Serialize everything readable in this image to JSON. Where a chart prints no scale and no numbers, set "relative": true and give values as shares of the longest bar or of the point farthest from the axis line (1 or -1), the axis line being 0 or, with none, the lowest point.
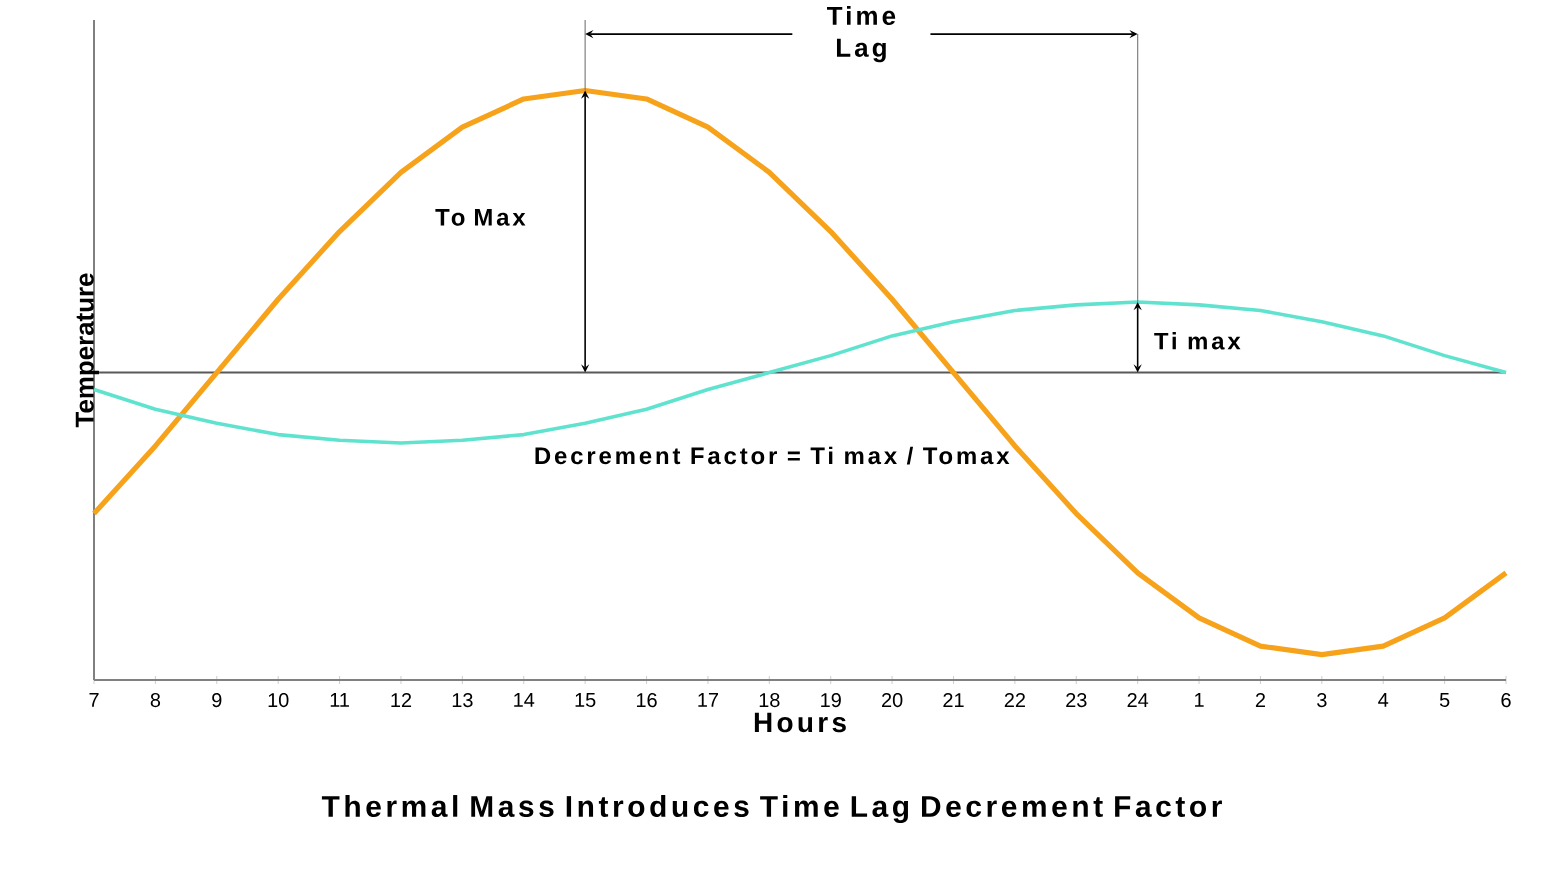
{
  "chart_data": {
    "type": "line",
    "title": "Thermal Mass Introduces Time Lag Decrement Factor",
    "xlabel": "Hours",
    "ylabel": "Temperature",
    "relative": true,
    "categories": [
      "7",
      "8",
      "9",
      "10",
      "11",
      "12",
      "13",
      "14",
      "15",
      "16",
      "17",
      "18",
      "19",
      "20",
      "21",
      "22",
      "23",
      "24",
      "1",
      "2",
      "3",
      "4",
      "5",
      "6"
    ],
    "series": [
      {
        "color": "#f7a21b",
        "values": [
          -0.5,
          -0.26,
          0,
          0.26,
          0.5,
          0.71,
          0.87,
          0.97,
          1,
          0.97,
          0.87,
          0.71,
          0.5,
          0.26,
          0,
          -0.26,
          -0.5,
          -0.71,
          -0.87,
          -0.97,
          -1,
          -0.97,
          -0.87,
          -0.71
        ]
      },
      {
        "color": "#5fe3cf",
        "values": [
          -0.06,
          -0.13,
          -0.18,
          -0.22,
          -0.24,
          -0.25,
          -0.24,
          -0.22,
          -0.18,
          -0.13,
          -0.06,
          0,
          0.06,
          0.13,
          0.18,
          0.22,
          0.24,
          0.25,
          0.24,
          0.22,
          0.18,
          0.13,
          0.06,
          0
        ]
      }
    ],
    "annotations": [
      "Time Lag",
      "To Max",
      "Ti max",
      "Decrement Factor = Ti max / Tomax"
    ]
  }
}
